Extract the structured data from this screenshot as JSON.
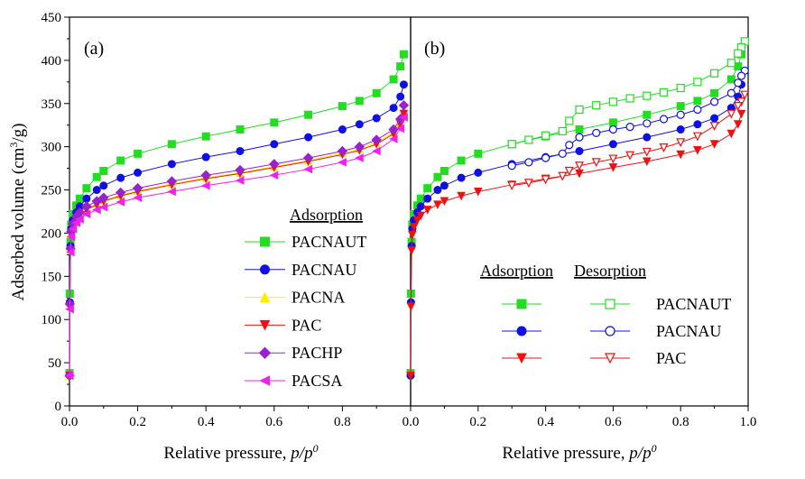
{
  "figure": {
    "ylabel": "Adsorbed volume (cm³/g)",
    "ylabel_parts": [
      "Adsorbed volume (cm",
      "3",
      "/g)"
    ],
    "xlabel_parts": [
      "Relative pressure, ",
      "p/p",
      "0"
    ]
  },
  "chart_data": [
    {
      "type": "line",
      "panel_label": "(a)",
      "xlabel": "Relative pressure, p/p0",
      "ylabel": "Adsorbed volume (cm3/g)",
      "xlim": [
        0,
        1.0
      ],
      "ylim": [
        0,
        450
      ],
      "x_ticks": [
        "0.0",
        "0.2",
        "0.4",
        "0.6",
        "0.8"
      ],
      "y_ticks": [
        "0",
        "50",
        "100",
        "150",
        "200",
        "250",
        "300",
        "350",
        "400",
        "450"
      ],
      "legend_title": "Adsorption",
      "legend_position": "lower-right",
      "series": [
        {
          "name": "PACNAUT",
          "color": "#22dd22",
          "marker": "square",
          "filled": true,
          "x": [
            0.0,
            0.001,
            0.003,
            0.005,
            0.01,
            0.02,
            0.03,
            0.05,
            0.08,
            0.1,
            0.15,
            0.2,
            0.3,
            0.4,
            0.5,
            0.6,
            0.7,
            0.8,
            0.85,
            0.9,
            0.95,
            0.97,
            0.98
          ],
          "y": [
            38,
            130,
            190,
            210,
            222,
            232,
            240,
            252,
            265,
            272,
            284,
            292,
            303,
            312,
            320,
            328,
            337,
            347,
            353,
            362,
            378,
            393,
            407
          ]
        },
        {
          "name": "PACNAU",
          "color": "#1010e0",
          "marker": "circle",
          "filled": true,
          "x": [
            0.0,
            0.001,
            0.003,
            0.005,
            0.01,
            0.02,
            0.03,
            0.05,
            0.08,
            0.1,
            0.15,
            0.2,
            0.3,
            0.4,
            0.5,
            0.6,
            0.7,
            0.8,
            0.85,
            0.9,
            0.95,
            0.97,
            0.98
          ],
          "y": [
            35,
            120,
            185,
            205,
            215,
            224,
            231,
            240,
            250,
            255,
            264,
            270,
            280,
            288,
            295,
            303,
            311,
            320,
            326,
            333,
            345,
            358,
            372
          ]
        },
        {
          "name": "PACNA",
          "color": "#ffee00",
          "marker": "triangle-up",
          "filled": true,
          "x": [
            0.0,
            0.001,
            0.003,
            0.005,
            0.01,
            0.02,
            0.03,
            0.05,
            0.08,
            0.1,
            0.15,
            0.2,
            0.3,
            0.4,
            0.5,
            0.6,
            0.7,
            0.8,
            0.85,
            0.9,
            0.95,
            0.97,
            0.98
          ],
          "y": [
            35,
            115,
            180,
            200,
            208,
            216,
            221,
            228,
            234,
            238,
            244,
            249,
            257,
            264,
            270,
            277,
            284,
            293,
            298,
            305,
            317,
            328,
            342
          ]
        },
        {
          "name": "PAC",
          "color": "#ee1111",
          "marker": "triangle-down",
          "filled": true,
          "x": [
            0.0,
            0.001,
            0.003,
            0.005,
            0.01,
            0.02,
            0.03,
            0.05,
            0.08,
            0.1,
            0.15,
            0.2,
            0.3,
            0.4,
            0.5,
            0.6,
            0.7,
            0.8,
            0.85,
            0.9,
            0.95,
            0.97,
            0.98
          ],
          "y": [
            35,
            115,
            180,
            198,
            207,
            215,
            220,
            227,
            233,
            237,
            243,
            248,
            256,
            263,
            269,
            276,
            283,
            291,
            296,
            303,
            315,
            326,
            338
          ]
        },
        {
          "name": "PACHP",
          "color": "#9922cc",
          "marker": "diamond",
          "filled": true,
          "x": [
            0.0,
            0.001,
            0.003,
            0.005,
            0.01,
            0.02,
            0.03,
            0.05,
            0.08,
            0.1,
            0.15,
            0.2,
            0.3,
            0.4,
            0.5,
            0.6,
            0.7,
            0.8,
            0.85,
            0.9,
            0.95,
            0.97,
            0.98
          ],
          "y": [
            35,
            118,
            182,
            202,
            211,
            219,
            224,
            231,
            237,
            241,
            247,
            252,
            260,
            267,
            273,
            280,
            287,
            295,
            300,
            308,
            320,
            332,
            348
          ]
        },
        {
          "name": "PACSA",
          "color": "#ee22ee",
          "marker": "triangle-left",
          "filled": true,
          "x": [
            0.0,
            0.001,
            0.003,
            0.005,
            0.01,
            0.02,
            0.03,
            0.05,
            0.08,
            0.1,
            0.15,
            0.2,
            0.3,
            0.4,
            0.5,
            0.6,
            0.7,
            0.8,
            0.85,
            0.9,
            0.95,
            0.97,
            0.98
          ],
          "y": [
            35,
            112,
            178,
            196,
            205,
            212,
            216,
            222,
            227,
            230,
            236,
            241,
            248,
            255,
            261,
            267,
            274,
            282,
            287,
            295,
            309,
            321,
            334
          ]
        }
      ]
    },
    {
      "type": "line",
      "panel_label": "(b)",
      "xlabel": "Relative pressure, p/p0",
      "ylabel": "",
      "xlim": [
        0,
        1.0
      ],
      "ylim": [
        0,
        450
      ],
      "x_ticks": [
        "0.0",
        "0.2",
        "0.4",
        "0.6",
        "0.8",
        "1.0"
      ],
      "legend_headers": [
        "Adsorption",
        "Desorption"
      ],
      "legend_position": "lower-right",
      "series": [
        {
          "name": "PACNAUT",
          "color": "#22dd22",
          "marker": "square",
          "filled": true,
          "role": "adsorption",
          "x": [
            0.0,
            0.001,
            0.003,
            0.005,
            0.01,
            0.02,
            0.03,
            0.05,
            0.08,
            0.1,
            0.15,
            0.2,
            0.3,
            0.4,
            0.5,
            0.6,
            0.7,
            0.8,
            0.85,
            0.9,
            0.95,
            0.97,
            0.98
          ],
          "y": [
            38,
            130,
            190,
            210,
            222,
            232,
            240,
            252,
            265,
            272,
            284,
            292,
            303,
            312,
            320,
            328,
            337,
            347,
            353,
            362,
            378,
            393,
            407
          ]
        },
        {
          "name": "PACNAU",
          "color": "#1010e0",
          "marker": "circle",
          "filled": true,
          "role": "adsorption",
          "x": [
            0.0,
            0.001,
            0.003,
            0.005,
            0.01,
            0.02,
            0.03,
            0.05,
            0.08,
            0.1,
            0.15,
            0.2,
            0.3,
            0.4,
            0.5,
            0.6,
            0.7,
            0.8,
            0.85,
            0.9,
            0.95,
            0.97,
            0.98
          ],
          "y": [
            35,
            120,
            185,
            205,
            215,
            224,
            231,
            240,
            250,
            255,
            264,
            270,
            280,
            288,
            295,
            303,
            311,
            320,
            326,
            333,
            345,
            358,
            372
          ]
        },
        {
          "name": "PAC",
          "color": "#ee1111",
          "marker": "triangle-down",
          "filled": true,
          "role": "adsorption",
          "x": [
            0.0,
            0.001,
            0.003,
            0.005,
            0.01,
            0.02,
            0.03,
            0.05,
            0.08,
            0.1,
            0.15,
            0.2,
            0.3,
            0.4,
            0.5,
            0.6,
            0.7,
            0.8,
            0.85,
            0.9,
            0.95,
            0.97,
            0.98
          ],
          "y": [
            35,
            115,
            180,
            198,
            207,
            215,
            220,
            227,
            233,
            237,
            243,
            248,
            256,
            263,
            269,
            276,
            283,
            291,
            296,
            303,
            315,
            326,
            338
          ]
        },
        {
          "name": "PACNAUT",
          "color": "#22dd22",
          "marker": "square",
          "filled": false,
          "role": "desorption",
          "x": [
            0.99,
            0.98,
            0.97,
            0.95,
            0.9,
            0.85,
            0.8,
            0.75,
            0.7,
            0.65,
            0.6,
            0.55,
            0.5,
            0.47,
            0.45,
            0.4,
            0.35,
            0.3
          ],
          "y": [
            422,
            415,
            408,
            397,
            385,
            375,
            368,
            363,
            359,
            356,
            352,
            348,
            343,
            330,
            318,
            313,
            308,
            303
          ]
        },
        {
          "name": "PACNAU",
          "color": "#1010e0",
          "marker": "circle",
          "filled": false,
          "role": "desorption",
          "x": [
            0.99,
            0.98,
            0.97,
            0.95,
            0.9,
            0.85,
            0.8,
            0.75,
            0.7,
            0.65,
            0.6,
            0.55,
            0.5,
            0.47,
            0.45,
            0.4,
            0.35,
            0.3
          ],
          "y": [
            388,
            382,
            374,
            362,
            352,
            343,
            337,
            332,
            327,
            323,
            320,
            316,
            311,
            302,
            292,
            287,
            282,
            278
          ]
        },
        {
          "name": "PAC",
          "color": "#ee1111",
          "marker": "triangle-down",
          "filled": false,
          "role": "desorption",
          "x": [
            0.99,
            0.98,
            0.97,
            0.95,
            0.9,
            0.85,
            0.8,
            0.75,
            0.7,
            0.65,
            0.6,
            0.55,
            0.5,
            0.47,
            0.45,
            0.4,
            0.35,
            0.3
          ],
          "y": [
            360,
            352,
            347,
            338,
            324,
            312,
            305,
            299,
            294,
            290,
            286,
            282,
            278,
            272,
            266,
            262,
            258,
            255
          ]
        }
      ]
    }
  ]
}
